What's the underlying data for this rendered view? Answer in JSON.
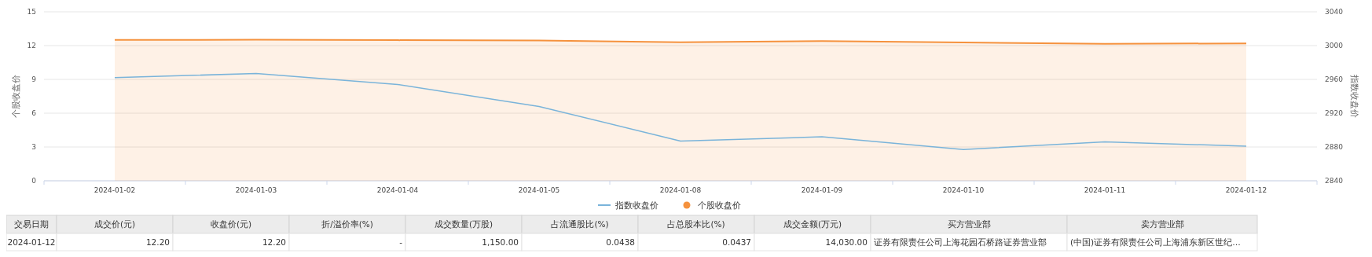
{
  "chart_data": [
    {
      "type": "line",
      "categories": [
        "2024-01-02",
        "2024-01-03",
        "2024-01-04",
        "2024-01-05",
        "2024-01-08",
        "2024-01-09",
        "2024-01-10",
        "2024-01-11",
        "2024-01-12"
      ],
      "ylabel": "个股收盘价",
      "y2label": "指数收盘价",
      "series": [
        {
          "name": "指数收盘价",
          "type": "line",
          "axis": "y2",
          "color": "#7ab4da",
          "values": [
            2962,
            2967,
            2954,
            2928,
            2887,
            2892,
            2877,
            2886,
            2881
          ]
        },
        {
          "name": "个股收盘价",
          "type": "area",
          "color": "#f5923e",
          "values": [
            12.5,
            12.52,
            12.48,
            12.45,
            12.3,
            12.4,
            12.28,
            12.15,
            12.2
          ]
        }
      ],
      "ylim": [
        0,
        15
      ],
      "yticks": [
        0,
        3,
        6,
        9,
        12,
        15
      ],
      "y2lim": [
        2840,
        3040
      ],
      "y2ticks": [
        2840,
        2880,
        2920,
        2960,
        3000,
        3040
      ],
      "grid": "y",
      "legend": "bottom"
    },
    {
      "type": "other",
      "categories": [
        "交易日期",
        "成交价(元)",
        "收盘价(元)",
        "折/溢价率(%)",
        "成交数量(万股)",
        "占流通股比(%)",
        "占总股本比(%)",
        "成交金额(万元)",
        "买方营业部",
        "卖方营业部"
      ],
      "cell_labels": [
        [
          "2024-01-12",
          "12.20",
          "12.20",
          "-",
          "1,150.00",
          "0.0438",
          "0.0437",
          "14,030.00",
          "证券有限责任公司上海花园石桥路证券营业部",
          "(中国)证券有限责任公司上海浦东新区世纪…"
        ]
      ]
    }
  ]
}
